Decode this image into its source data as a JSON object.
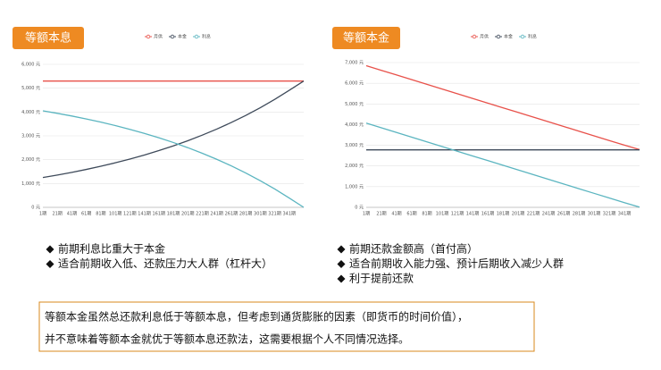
{
  "chart_data": [
    {
      "type": "line",
      "title": "等额本息",
      "categories": [
        "1期",
        "21期",
        "41期",
        "61期",
        "81期",
        "101期",
        "121期",
        "141期",
        "161期",
        "181期",
        "201期",
        "221期",
        "241期",
        "261期",
        "281期",
        "301期",
        "321期",
        "341期",
        null
      ],
      "series": [
        {
          "name": "月供",
          "color": "#e8514a",
          "values": [
            5300,
            5300,
            5300,
            5300,
            5300,
            5300,
            5300,
            5300,
            5300,
            5300,
            5300,
            5300,
            5300,
            5300,
            5300,
            5300,
            5300,
            5300,
            5300
          ]
        },
        {
          "name": "本金",
          "color": "#3e4a5a",
          "values": [
            1250,
            1355,
            1468,
            1591,
            1725,
            1869,
            2026,
            2196,
            2380,
            2579,
            2795,
            3030,
            3284,
            3559,
            3857,
            4180,
            4531,
            4910,
            5300
          ]
        },
        {
          "name": "利息",
          "color": "#5bb5c0",
          "values": [
            4050,
            3945,
            3832,
            3709,
            3575,
            3431,
            3274,
            3104,
            2920,
            2721,
            2505,
            2270,
            2016,
            1741,
            1443,
            1120,
            769,
            390,
            0
          ]
        }
      ],
      "ylim": [
        0,
        6000
      ],
      "yticks": [
        {
          "value": 0,
          "label": "0 元"
        },
        {
          "value": 1000,
          "label": "1,000 元"
        },
        {
          "value": 2000,
          "label": "2,000 元"
        },
        {
          "value": 3000,
          "label": "3,000 元"
        },
        {
          "value": 4000,
          "label": "4,000 元"
        },
        {
          "value": 5000,
          "label": "5,000 元"
        },
        {
          "value": 6000,
          "label": "6,000 元"
        }
      ],
      "grid": true
    },
    {
      "type": "line",
      "title": "等额本金",
      "categories": [
        "1期",
        "21期",
        "41期",
        "61期",
        "81期",
        "101期",
        "121期",
        "141期",
        "161期",
        "181期",
        "201期",
        "221期",
        "241期",
        "261期",
        "281期",
        "301期",
        "321期",
        "341期",
        null
      ],
      "series": [
        {
          "name": "月供",
          "color": "#e8514a",
          "values": [
            6850,
            6624,
            6398,
            6172,
            5946,
            5719,
            5493,
            5267,
            5041,
            4815,
            4589,
            4363,
            4137,
            3911,
            3684,
            3458,
            3232,
            3006,
            2791
          ]
        },
        {
          "name": "本金",
          "color": "#3e4a5a",
          "values": [
            2780,
            2780,
            2780,
            2780,
            2780,
            2780,
            2780,
            2780,
            2780,
            2780,
            2780,
            2780,
            2780,
            2780,
            2780,
            2780,
            2780,
            2780,
            2780
          ]
        },
        {
          "name": "利息",
          "color": "#5bb5c0",
          "values": [
            4070,
            3844,
            3618,
            3392,
            3166,
            2939,
            2713,
            2487,
            2261,
            2035,
            1809,
            1583,
            1357,
            1131,
            904,
            678,
            452,
            226,
            11
          ]
        }
      ],
      "ylim": [
        0,
        7000
      ],
      "yticks": [
        {
          "value": 0,
          "label": "0 元"
        },
        {
          "value": 1000,
          "label": "1,000 元"
        },
        {
          "value": 2000,
          "label": "2,000 元"
        },
        {
          "value": 3000,
          "label": "3,000 元"
        },
        {
          "value": 4000,
          "label": "4,000 元"
        },
        {
          "value": 5000,
          "label": "5,000 元"
        },
        {
          "value": 6000,
          "label": "6,000 元"
        },
        {
          "value": 7000,
          "label": "7,000 元"
        }
      ],
      "grid": true
    }
  ],
  "left_points": [
    "前期利息比重大于本金",
    "适合前期收入低、还款压力大人群（杠杆大）"
  ],
  "right_points": [
    "前期还款金额高（首付高）",
    "适合前期收入能力强、预计后期收入减少人群",
    "利于提前还款"
  ],
  "note": [
    "等额本金虽然总还款利息低于等额本息，但考虑到通货膨胀的因素（即货币的时间价值），",
    "并不意味着等额本金就优于等额本息还款法，这需要根据个人不同情况选择。"
  ]
}
